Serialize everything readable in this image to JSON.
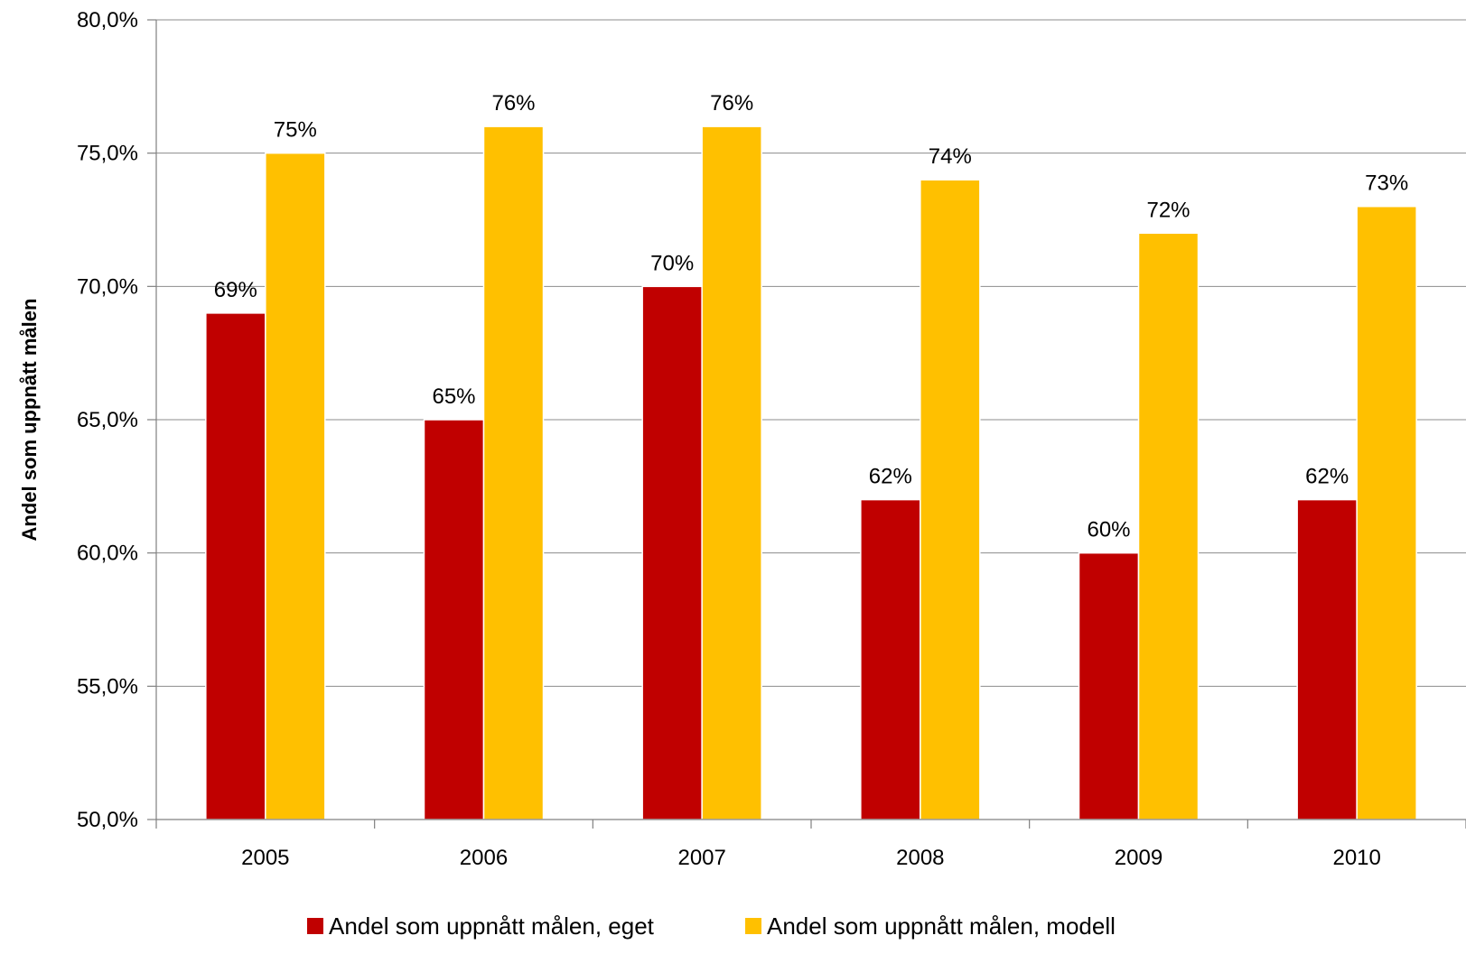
{
  "chart_data": {
    "type": "bar",
    "title": "",
    "xlabel": "",
    "ylabel": "Andel som uppnått målen",
    "categories": [
      "2005",
      "2006",
      "2007",
      "2008",
      "2009",
      "2010"
    ],
    "ylim": [
      50,
      80
    ],
    "yticks": [
      50,
      55,
      60,
      65,
      70,
      75,
      80
    ],
    "ytick_labels": [
      "50,0%",
      "55,0%",
      "60,0%",
      "65,0%",
      "70,0%",
      "75,0%",
      "80,0%"
    ],
    "grid": true,
    "legend_position": "bottom",
    "series": [
      {
        "name": "Andel som uppnått målen, eget",
        "color": "#C00000",
        "values": [
          69,
          65,
          70,
          62,
          60,
          62
        ],
        "labels": [
          "69%",
          "65%",
          "70%",
          "62%",
          "60%",
          "62%"
        ]
      },
      {
        "name": "Andel som uppnått målen, modell",
        "color": "#FFC000",
        "values": [
          75,
          76,
          76,
          74,
          72,
          73
        ],
        "labels": [
          "75%",
          "76%",
          "76%",
          "74%",
          "72%",
          "73%"
        ]
      }
    ]
  }
}
